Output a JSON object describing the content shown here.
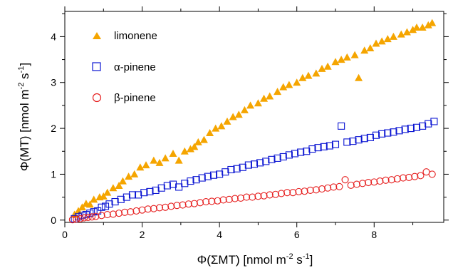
{
  "chart_data": {
    "type": "scatter",
    "title": "",
    "xlabel": {
      "pre": "Φ(ΣMT) [nmol m",
      "sup1": "-2",
      "mid": " s",
      "sup2": "-1",
      "post": "]"
    },
    "ylabel": {
      "pre": "Φ(MT) [nmol m",
      "sup1": "-2",
      "mid": " s",
      "sup2": "-1",
      "post": "]"
    },
    "xlim": [
      0,
      9.8
    ],
    "ylim": [
      -0.05,
      4.55
    ],
    "xticks": [
      0,
      2,
      4,
      6,
      8
    ],
    "yticks": [
      0,
      1,
      2,
      3,
      4
    ],
    "grid": false,
    "legend_position": "top-left",
    "series": [
      {
        "name": "limonene",
        "marker": "triangle",
        "color": "#F5A500",
        "x": [
          0.25,
          0.35,
          0.45,
          0.55,
          0.65,
          0.75,
          0.9,
          1.0,
          1.1,
          1.25,
          1.4,
          1.5,
          1.65,
          1.8,
          1.95,
          2.1,
          2.3,
          2.45,
          2.6,
          2.8,
          2.95,
          3.1,
          3.25,
          3.35,
          3.45,
          3.6,
          3.75,
          3.9,
          4.05,
          4.2,
          4.35,
          4.5,
          4.65,
          4.8,
          5.0,
          5.15,
          5.3,
          5.5,
          5.65,
          5.8,
          6.0,
          6.15,
          6.3,
          6.5,
          6.65,
          6.8,
          7.0,
          7.15,
          7.3,
          7.5,
          7.6,
          7.75,
          7.9,
          8.05,
          8.2,
          8.35,
          8.5,
          8.7,
          8.85,
          9.0,
          9.1,
          9.25,
          9.4,
          9.5
        ],
        "y": [
          0.12,
          0.2,
          0.28,
          0.36,
          0.34,
          0.45,
          0.5,
          0.52,
          0.6,
          0.7,
          0.75,
          0.85,
          0.95,
          1.0,
          1.15,
          1.2,
          1.3,
          1.25,
          1.35,
          1.45,
          1.3,
          1.5,
          1.55,
          1.6,
          1.7,
          1.75,
          1.9,
          2.0,
          2.05,
          2.15,
          2.25,
          2.3,
          2.4,
          2.5,
          2.55,
          2.65,
          2.7,
          2.8,
          2.9,
          2.95,
          3.0,
          3.1,
          3.15,
          3.2,
          3.3,
          3.35,
          3.45,
          3.5,
          3.55,
          3.6,
          3.1,
          3.7,
          3.75,
          3.85,
          3.9,
          3.95,
          4.0,
          4.05,
          4.1,
          4.15,
          4.2,
          4.2,
          4.25,
          4.3
        ]
      },
      {
        "name": "α-pinene",
        "marker": "square",
        "color": "#0A14D2",
        "x": [
          0.25,
          0.35,
          0.45,
          0.55,
          0.65,
          0.75,
          0.85,
          0.95,
          1.05,
          1.15,
          1.3,
          1.45,
          1.6,
          1.75,
          1.9,
          2.05,
          2.2,
          2.35,
          2.5,
          2.65,
          2.8,
          2.95,
          3.1,
          3.25,
          3.4,
          3.55,
          3.7,
          3.85,
          4.0,
          4.15,
          4.3,
          4.45,
          4.6,
          4.75,
          4.9,
          5.05,
          5.2,
          5.35,
          5.5,
          5.65,
          5.8,
          5.95,
          6.1,
          6.25,
          6.4,
          6.55,
          6.7,
          6.85,
          7.0,
          7.15,
          7.3,
          7.45,
          7.6,
          7.75,
          7.9,
          8.05,
          8.2,
          8.35,
          8.5,
          8.65,
          8.8,
          8.95,
          9.1,
          9.25,
          9.4,
          9.55
        ],
        "y": [
          0.03,
          0.07,
          0.1,
          0.12,
          0.15,
          0.18,
          0.2,
          0.28,
          0.3,
          0.35,
          0.4,
          0.45,
          0.5,
          0.55,
          0.55,
          0.6,
          0.62,
          0.65,
          0.7,
          0.75,
          0.78,
          0.72,
          0.8,
          0.85,
          0.88,
          0.92,
          0.95,
          0.98,
          1.0,
          1.05,
          1.1,
          1.12,
          1.15,
          1.2,
          1.22,
          1.25,
          1.28,
          1.32,
          1.35,
          1.38,
          1.42,
          1.45,
          1.48,
          1.5,
          1.55,
          1.58,
          1.6,
          1.62,
          1.65,
          2.05,
          1.7,
          1.72,
          1.75,
          1.78,
          1.8,
          1.85,
          1.88,
          1.9,
          1.92,
          1.95,
          1.98,
          2.0,
          2.02,
          2.05,
          2.1,
          2.15
        ]
      },
      {
        "name": "β-pinene",
        "marker": "circle",
        "color": "#E61E1E",
        "x": [
          0.2,
          0.3,
          0.4,
          0.5,
          0.6,
          0.7,
          0.8,
          0.95,
          1.1,
          1.25,
          1.4,
          1.55,
          1.7,
          1.85,
          2.0,
          2.15,
          2.3,
          2.45,
          2.6,
          2.75,
          2.9,
          3.05,
          3.2,
          3.35,
          3.5,
          3.65,
          3.8,
          3.95,
          4.1,
          4.25,
          4.4,
          4.55,
          4.7,
          4.85,
          5.0,
          5.15,
          5.3,
          5.45,
          5.6,
          5.75,
          5.9,
          6.05,
          6.2,
          6.35,
          6.5,
          6.65,
          6.8,
          6.95,
          7.1,
          7.25,
          7.4,
          7.55,
          7.7,
          7.85,
          8.0,
          8.15,
          8.3,
          8.45,
          8.6,
          8.75,
          8.9,
          9.05,
          9.2,
          9.35,
          9.5
        ],
        "y": [
          0.01,
          0.02,
          0.03,
          0.05,
          0.06,
          0.07,
          0.08,
          0.1,
          0.12,
          0.13,
          0.15,
          0.17,
          0.18,
          0.2,
          0.22,
          0.24,
          0.25,
          0.27,
          0.28,
          0.3,
          0.32,
          0.33,
          0.35,
          0.36,
          0.38,
          0.4,
          0.41,
          0.42,
          0.44,
          0.45,
          0.47,
          0.48,
          0.5,
          0.5,
          0.52,
          0.53,
          0.55,
          0.56,
          0.58,
          0.6,
          0.6,
          0.62,
          0.63,
          0.65,
          0.66,
          0.68,
          0.7,
          0.72,
          0.73,
          0.88,
          0.76,
          0.78,
          0.8,
          0.82,
          0.83,
          0.85,
          0.87,
          0.88,
          0.9,
          0.92,
          0.93,
          0.95,
          0.97,
          1.05,
          1.0
        ]
      }
    ]
  }
}
